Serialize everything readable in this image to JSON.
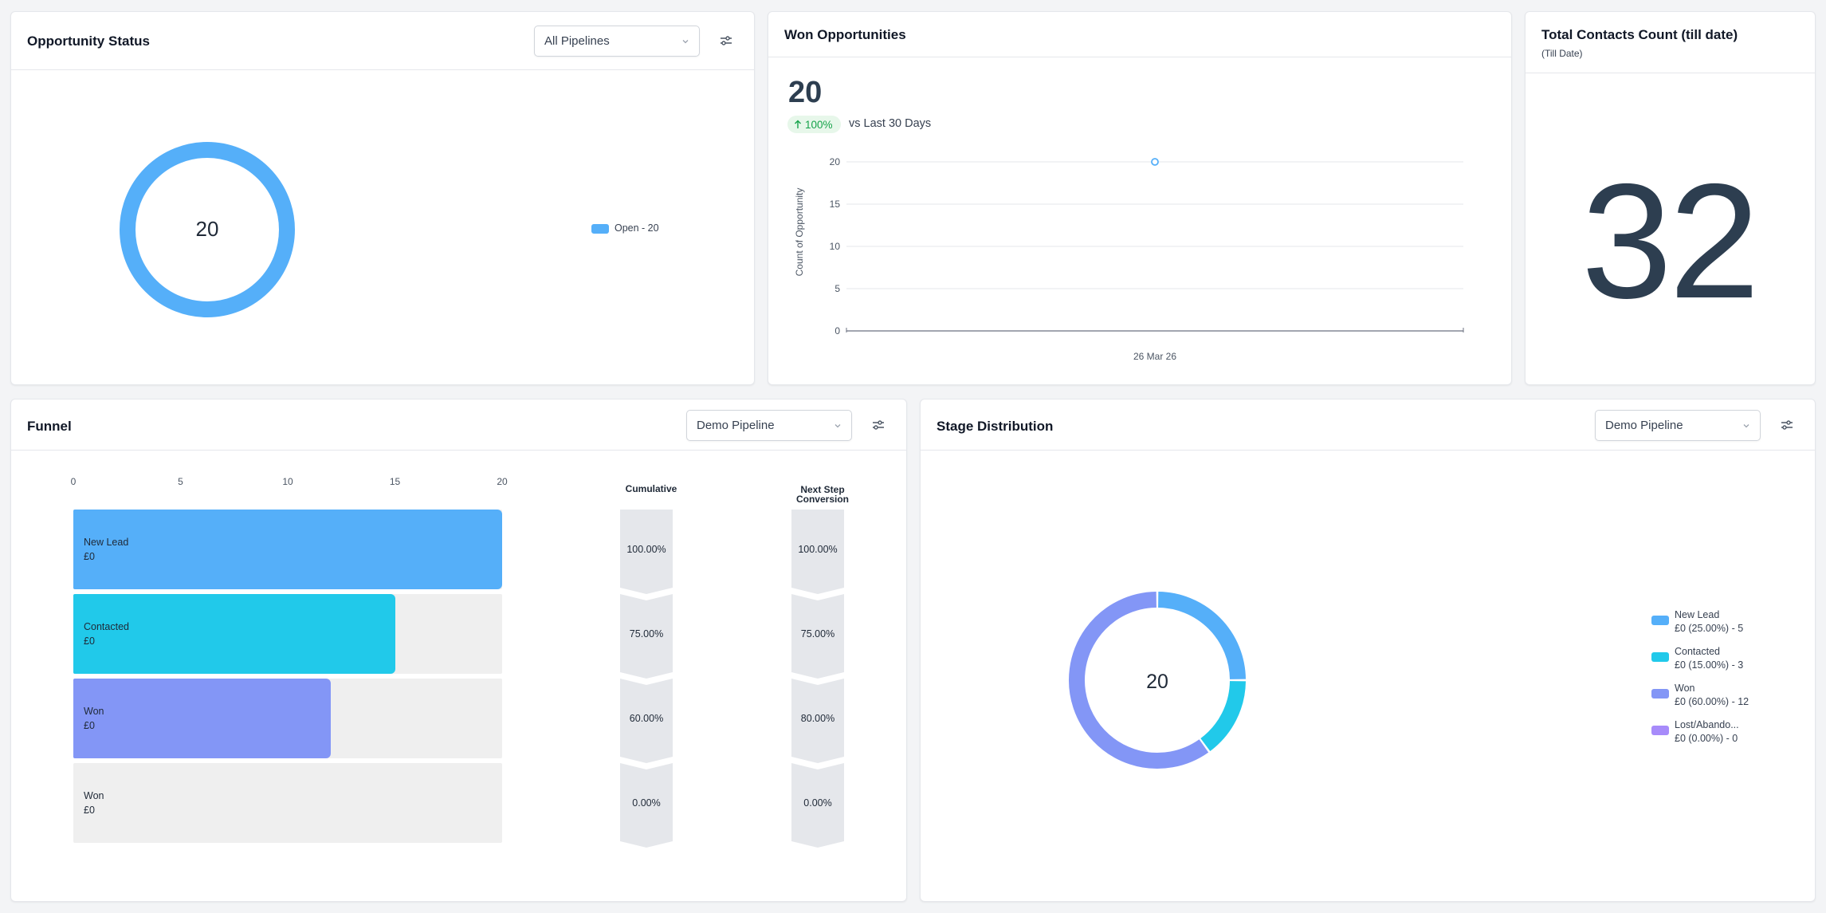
{
  "opportunity_status": {
    "title": "Opportunity Status",
    "pipeline_select": "All Pipelines",
    "center_value": "20",
    "legend": [
      {
        "label": "Open - 20",
        "color": "#55aff9"
      }
    ]
  },
  "won_opportunities": {
    "title": "Won Opportunities",
    "value": "20",
    "badge": "100%",
    "badge_icon": "arrow-up-icon",
    "comparison": "vs Last 30 Days",
    "chart_data": {
      "type": "line",
      "x": [
        "26 Mar 26"
      ],
      "series": [
        {
          "values": [
            20
          ]
        }
      ],
      "ylabel": "Count of Opportunity",
      "yticks": [
        "20",
        "15",
        "10",
        "5",
        "0"
      ],
      "ylim": [
        0,
        20
      ],
      "grid": true
    }
  },
  "total_contacts": {
    "title": "Total Contacts Count (till date)",
    "subtitle": "(Till Date)",
    "value": "32"
  },
  "funnel": {
    "title": "Funnel",
    "pipeline_select": "Demo Pipeline",
    "x_ticks": [
      "0",
      "5",
      "10",
      "15",
      "20"
    ],
    "col_cumulative": [
      "Cumulative"
    ],
    "col_next": [
      "Next Step",
      "Conversion"
    ],
    "chart_data": {
      "type": "bar",
      "xlim": [
        0,
        20
      ],
      "categories": [
        "New Lead",
        "Contacted",
        "Won",
        "Won"
      ],
      "values": [
        20,
        15,
        12,
        0
      ],
      "amounts": [
        "£0",
        "£0",
        "£0",
        "£0"
      ],
      "colors": [
        "#55aff9",
        "#21c9ea",
        "#8396f6",
        "#efefef"
      ],
      "cumulative": [
        "100.00%",
        "75.00%",
        "60.00%",
        "0.00%"
      ],
      "next_step_conversion": [
        "100.00%",
        "75.00%",
        "80.00%",
        "0.00%"
      ]
    }
  },
  "stage_distribution": {
    "title": "Stage Distribution",
    "pipeline_select": "Demo Pipeline",
    "center_value": "20",
    "chart_data": {
      "type": "pie",
      "slices": [
        {
          "name": "New Lead",
          "value": 5,
          "detail": "£0 (25.00%) - 5",
          "color": "#55aff9"
        },
        {
          "name": "Contacted",
          "value": 3,
          "detail": "£0 (15.00%) - 3",
          "color": "#21c9ea"
        },
        {
          "name": "Won",
          "value": 12,
          "detail": "£0 (60.00%) - 12",
          "color": "#8396f6"
        },
        {
          "name": "Lost/Abando...",
          "value": 0,
          "detail": "£0 (0.00%) - 0",
          "color": "#a78bfa"
        }
      ]
    }
  }
}
